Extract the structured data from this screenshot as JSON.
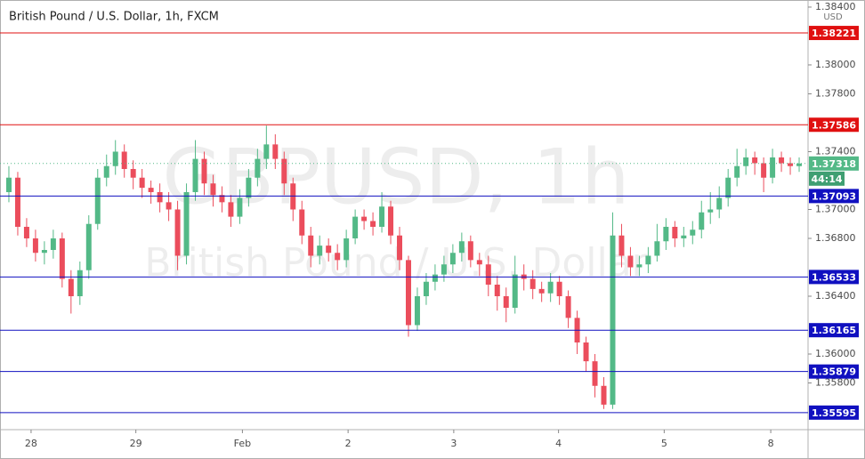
{
  "chart_data": {
    "type": "candlestick",
    "title": "British Pound / U.S. Dollar, 1h, FXCM",
    "watermark": "GBPUSD, 1h",
    "watermark_subtitle": "British Pound / U.S. Dollar",
    "currency": "USD",
    "countdown": "44:14",
    "up_color": "#53b987",
    "down_color": "#eb4d5c",
    "open": [
      1.3712,
      1.3722,
      1.3688,
      1.368,
      1.367,
      1.3672,
      1.368,
      1.3652,
      1.364,
      1.3658,
      1.369,
      1.3722,
      1.373,
      1.374,
      1.3728,
      1.3722,
      1.3715,
      1.3712,
      1.3705,
      1.37,
      1.3668,
      1.3712,
      1.3735,
      1.3718,
      1.371,
      1.3705,
      1.3695,
      1.3708,
      1.3722,
      1.3735,
      1.3745,
      1.3735,
      1.3718,
      1.37,
      1.3682,
      1.3668,
      1.3675,
      1.367,
      1.3665,
      1.368,
      1.3695,
      1.3692,
      1.3688,
      1.3702,
      1.3682,
      1.3665,
      1.362,
      1.364,
      1.365,
      1.3655,
      1.3662,
      1.367,
      1.3678,
      1.3665,
      1.3662,
      1.3648,
      1.364,
      1.3632,
      1.3655,
      1.3652,
      1.3645,
      1.3642,
      1.365,
      1.364,
      1.3625,
      1.3608,
      1.3595,
      1.3578,
      1.3565,
      1.3682,
      1.3668,
      1.366,
      1.3662,
      1.3668,
      1.3678,
      1.3688,
      1.368,
      1.3682,
      1.3686,
      1.3698,
      1.37,
      1.3708,
      1.3722,
      1.373,
      1.3736,
      1.3732,
      1.3722,
      1.3736,
      1.3732,
      1.373
    ],
    "high": [
      1.373,
      1.3726,
      1.3694,
      1.3686,
      1.3678,
      1.3686,
      1.3684,
      1.3658,
      1.3664,
      1.3696,
      1.3728,
      1.3738,
      1.3748,
      1.3745,
      1.3734,
      1.3728,
      1.372,
      1.3718,
      1.3712,
      1.3706,
      1.3718,
      1.3748,
      1.374,
      1.3724,
      1.3716,
      1.371,
      1.3714,
      1.3728,
      1.3742,
      1.3758,
      1.3752,
      1.374,
      1.3722,
      1.3706,
      1.3688,
      1.3682,
      1.368,
      1.3676,
      1.3686,
      1.37,
      1.37,
      1.3698,
      1.3712,
      1.3706,
      1.3688,
      1.3668,
      1.3646,
      1.3656,
      1.3662,
      1.3668,
      1.3676,
      1.3684,
      1.3682,
      1.367,
      1.3668,
      1.3654,
      1.3646,
      1.3668,
      1.3662,
      1.3658,
      1.365,
      1.3656,
      1.3654,
      1.3644,
      1.363,
      1.3612,
      1.36,
      1.3584,
      1.3698,
      1.369,
      1.3674,
      1.3668,
      1.3674,
      1.369,
      1.3694,
      1.3692,
      1.3688,
      1.3692,
      1.3706,
      1.3712,
      1.3716,
      1.3728,
      1.3742,
      1.3742,
      1.374,
      1.3736,
      1.3742,
      1.374,
      1.3736,
      1.3736
    ],
    "low": [
      1.3705,
      1.3682,
      1.3674,
      1.3664,
      1.3662,
      1.3666,
      1.3646,
      1.3628,
      1.3634,
      1.3652,
      1.3686,
      1.3716,
      1.3724,
      1.3722,
      1.3714,
      1.3708,
      1.3704,
      1.3698,
      1.3692,
      1.3658,
      1.3662,
      1.3706,
      1.371,
      1.3702,
      1.3698,
      1.3688,
      1.369,
      1.3702,
      1.3716,
      1.3728,
      1.3728,
      1.371,
      1.3692,
      1.3676,
      1.366,
      1.3662,
      1.3664,
      1.3658,
      1.366,
      1.3676,
      1.3686,
      1.3682,
      1.3684,
      1.3676,
      1.3658,
      1.3612,
      1.3616,
      1.3634,
      1.3644,
      1.365,
      1.3656,
      1.3664,
      1.366,
      1.3654,
      1.364,
      1.363,
      1.3622,
      1.3628,
      1.3644,
      1.3638,
      1.3636,
      1.3636,
      1.3634,
      1.3618,
      1.36,
      1.3588,
      1.357,
      1.3562,
      1.3562,
      1.366,
      1.3654,
      1.3654,
      1.3656,
      1.3664,
      1.3672,
      1.3674,
      1.3674,
      1.3676,
      1.368,
      1.369,
      1.3694,
      1.3702,
      1.3716,
      1.3724,
      1.3724,
      1.3712,
      1.3718,
      1.3726,
      1.3724,
      1.3726
    ],
    "close": [
      1.3722,
      1.3688,
      1.368,
      1.367,
      1.3672,
      1.368,
      1.3652,
      1.364,
      1.3658,
      1.369,
      1.3722,
      1.373,
      1.374,
      1.3728,
      1.3722,
      1.3715,
      1.3712,
      1.3705,
      1.37,
      1.3668,
      1.3712,
      1.3735,
      1.3718,
      1.371,
      1.3705,
      1.3695,
      1.3708,
      1.3722,
      1.3735,
      1.3745,
      1.3735,
      1.3718,
      1.37,
      1.3682,
      1.3668,
      1.3675,
      1.367,
      1.3665,
      1.368,
      1.3695,
      1.3692,
      1.3688,
      1.3702,
      1.3682,
      1.3665,
      1.362,
      1.364,
      1.365,
      1.3655,
      1.3662,
      1.367,
      1.3678,
      1.3665,
      1.3662,
      1.3648,
      1.364,
      1.3632,
      1.3655,
      1.3652,
      1.3645,
      1.3642,
      1.365,
      1.364,
      1.3625,
      1.3608,
      1.3595,
      1.3578,
      1.3565,
      1.3682,
      1.3668,
      1.366,
      1.3662,
      1.3668,
      1.3678,
      1.3688,
      1.368,
      1.3682,
      1.3686,
      1.3698,
      1.37,
      1.3708,
      1.3722,
      1.373,
      1.3736,
      1.3732,
      1.3722,
      1.3736,
      1.3732,
      1.373,
      1.37318
    ],
    "xlim": [
      -1,
      90
    ],
    "xticks": [
      {
        "value": 2.5,
        "label": "28"
      },
      {
        "value": 14.3,
        "label": "29"
      },
      {
        "value": 26.3,
        "label": "Feb"
      },
      {
        "value": 38.2,
        "label": "2"
      },
      {
        "value": 50.1,
        "label": "3"
      },
      {
        "value": 61.9,
        "label": "4"
      },
      {
        "value": 73.8,
        "label": "5"
      },
      {
        "value": 85.8,
        "label": "8"
      }
    ],
    "ylim": [
      1.35477,
      1.38449
    ],
    "yticks": [
      {
        "value": 1.384,
        "label": "1.38400"
      },
      {
        "value": 1.38,
        "label": "1.38000"
      },
      {
        "value": 1.378,
        "label": "1.37800"
      },
      {
        "value": 1.374,
        "label": "1.37400"
      },
      {
        "value": 1.37,
        "label": "1.37000"
      },
      {
        "value": 1.368,
        "label": "1.36800"
      },
      {
        "value": 1.364,
        "label": "1.36400"
      },
      {
        "value": 1.36,
        "label": "1.36000"
      },
      {
        "value": 1.358,
        "label": "1.35800"
      }
    ],
    "levels": [
      {
        "value": 1.38221,
        "color": "#e01010"
      },
      {
        "value": 1.37586,
        "color": "#e01010"
      },
      {
        "value": 1.37093,
        "color": "#1010c0"
      },
      {
        "value": 1.36533,
        "color": "#1010c0"
      },
      {
        "value": 1.36165,
        "color": "#1010c0"
      },
      {
        "value": 1.35879,
        "color": "#1010c0"
      },
      {
        "value": 1.35595,
        "color": "#1010c0"
      }
    ]
  }
}
